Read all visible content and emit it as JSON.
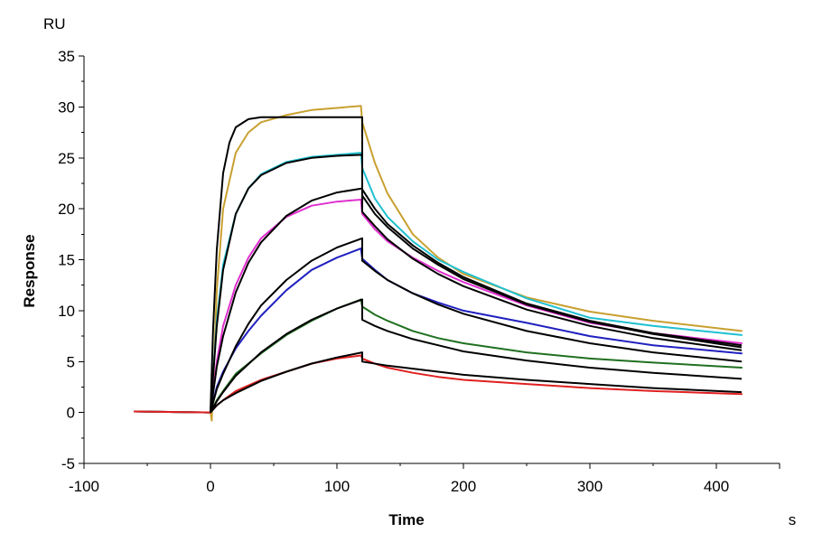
{
  "chart_data": {
    "type": "line",
    "xlabel": "Time",
    "xunit": "s",
    "ylabel": "Response",
    "yunit": "RU",
    "xlim": [
      -100,
      450
    ],
    "ylim": [
      -5,
      35
    ],
    "xticks": [
      -100,
      0,
      100,
      200,
      300,
      400
    ],
    "xtick_labels": [
      "-100",
      "0",
      "100",
      "200",
      "300",
      "400"
    ],
    "yticks": [
      -5,
      0,
      5,
      10,
      15,
      20,
      25,
      30,
      35
    ],
    "ytick_labels": [
      "-5",
      "0",
      "5",
      "10",
      "15",
      "20",
      "25",
      "30",
      "35"
    ],
    "grid": false,
    "series": [
      {
        "color": "#c8a030",
        "values": [
          [
            -60,
            0.1
          ],
          [
            0,
            0
          ],
          [
            1,
            -0.8
          ],
          [
            5,
            12
          ],
          [
            10,
            20
          ],
          [
            20,
            25.5
          ],
          [
            30,
            27.5
          ],
          [
            40,
            28.5
          ],
          [
            60,
            29.2
          ],
          [
            80,
            29.7
          ],
          [
            100,
            29.9
          ],
          [
            119,
            30.1
          ],
          [
            120,
            28.5
          ],
          [
            130,
            24.5
          ],
          [
            140,
            21.5
          ],
          [
            160,
            17.5
          ],
          [
            180,
            15.2
          ],
          [
            200,
            13.6
          ],
          [
            250,
            11.3
          ],
          [
            300,
            9.9
          ],
          [
            350,
            9.0
          ],
          [
            420,
            8.0
          ]
        ]
      },
      {
        "color": "#20c0d0",
        "values": [
          [
            -60,
            0.1
          ],
          [
            0,
            0
          ],
          [
            5,
            9
          ],
          [
            10,
            14.5
          ],
          [
            20,
            19.5
          ],
          [
            30,
            22
          ],
          [
            40,
            23.4
          ],
          [
            60,
            24.6
          ],
          [
            80,
            25.1
          ],
          [
            100,
            25.3
          ],
          [
            119,
            25.5
          ],
          [
            120,
            24
          ],
          [
            130,
            21
          ],
          [
            140,
            19.2
          ],
          [
            160,
            16.8
          ],
          [
            180,
            15
          ],
          [
            200,
            13.8
          ],
          [
            250,
            11.2
          ],
          [
            300,
            9.3
          ],
          [
            350,
            8.5
          ],
          [
            420,
            7.6
          ]
        ]
      },
      {
        "color": "#e030d0",
        "values": [
          [
            -60,
            0.1
          ],
          [
            0,
            0
          ],
          [
            5,
            5
          ],
          [
            10,
            8.5
          ],
          [
            20,
            12.5
          ],
          [
            30,
            15.2
          ],
          [
            40,
            17.1
          ],
          [
            60,
            19.2
          ],
          [
            80,
            20.3
          ],
          [
            100,
            20.7
          ],
          [
            119,
            20.9
          ],
          [
            120,
            19.5
          ],
          [
            130,
            18
          ],
          [
            140,
            16.8
          ],
          [
            160,
            15.2
          ],
          [
            180,
            13.9
          ],
          [
            200,
            12.8
          ],
          [
            250,
            10.5
          ],
          [
            300,
            8.8
          ],
          [
            350,
            7.8
          ],
          [
            420,
            6.8
          ]
        ]
      },
      {
        "color": "#2020c0",
        "values": [
          [
            -60,
            0.1
          ],
          [
            0,
            0
          ],
          [
            5,
            2.5
          ],
          [
            10,
            4
          ],
          [
            20,
            6.3
          ],
          [
            30,
            8
          ],
          [
            40,
            9.5
          ],
          [
            60,
            12
          ],
          [
            80,
            14
          ],
          [
            100,
            15.2
          ],
          [
            119,
            16.1
          ],
          [
            120,
            15.1
          ],
          [
            130,
            14
          ],
          [
            140,
            13
          ],
          [
            160,
            11.7
          ],
          [
            180,
            10.8
          ],
          [
            200,
            10
          ],
          [
            250,
            8.8
          ],
          [
            300,
            7.5
          ],
          [
            350,
            6.6
          ],
          [
            420,
            5.8
          ]
        ]
      },
      {
        "color": "#207020",
        "values": [
          [
            -60,
            0.1
          ],
          [
            0,
            0
          ],
          [
            5,
            1.2
          ],
          [
            10,
            2.1
          ],
          [
            20,
            3.8
          ],
          [
            40,
            5.8
          ],
          [
            60,
            7.6
          ],
          [
            80,
            9.0
          ],
          [
            100,
            10.2
          ],
          [
            119,
            11.1
          ],
          [
            120,
            10.4
          ],
          [
            130,
            9.6
          ],
          [
            140,
            9.0
          ],
          [
            160,
            8.0
          ],
          [
            180,
            7.3
          ],
          [
            200,
            6.8
          ],
          [
            250,
            5.9
          ],
          [
            300,
            5.3
          ],
          [
            350,
            4.9
          ],
          [
            420,
            4.4
          ]
        ]
      },
      {
        "color": "#e02020",
        "values": [
          [
            -60,
            0.1
          ],
          [
            0,
            0
          ],
          [
            5,
            0.7
          ],
          [
            10,
            1.2
          ],
          [
            20,
            2.1
          ],
          [
            40,
            3.2
          ],
          [
            60,
            4
          ],
          [
            80,
            4.8
          ],
          [
            100,
            5.3
          ],
          [
            119,
            5.6
          ],
          [
            120,
            5.3
          ],
          [
            130,
            4.8
          ],
          [
            140,
            4.4
          ],
          [
            160,
            3.9
          ],
          [
            180,
            3.5
          ],
          [
            200,
            3.2
          ],
          [
            250,
            2.8
          ],
          [
            300,
            2.4
          ],
          [
            350,
            2.1
          ],
          [
            420,
            1.8
          ]
        ]
      }
    ],
    "fits": [
      {
        "values": [
          [
            0,
            0
          ],
          [
            2,
            8
          ],
          [
            5,
            16
          ],
          [
            10,
            23.5
          ],
          [
            15,
            26.5
          ],
          [
            20,
            28
          ],
          [
            30,
            28.8
          ],
          [
            40,
            29
          ],
          [
            60,
            29
          ],
          [
            100,
            29
          ],
          [
            120,
            29
          ],
          [
            120,
            21.9
          ],
          [
            130,
            20
          ],
          [
            140,
            18.5
          ],
          [
            160,
            16.4
          ],
          [
            180,
            14.7
          ],
          [
            200,
            13.3
          ],
          [
            250,
            10.7
          ],
          [
            300,
            9
          ],
          [
            350,
            7.8
          ],
          [
            420,
            6.6
          ]
        ]
      },
      {
        "values": [
          [
            0,
            0
          ],
          [
            5,
            8.5
          ],
          [
            10,
            14
          ],
          [
            20,
            19.5
          ],
          [
            30,
            22
          ],
          [
            40,
            23.3
          ],
          [
            60,
            24.5
          ],
          [
            80,
            25
          ],
          [
            100,
            25.2
          ],
          [
            120,
            25.3
          ],
          [
            120,
            21.3
          ],
          [
            130,
            19.5
          ],
          [
            140,
            18.2
          ],
          [
            160,
            16.1
          ],
          [
            180,
            14.5
          ],
          [
            200,
            13.1
          ],
          [
            250,
            10.6
          ],
          [
            300,
            8.9
          ],
          [
            350,
            7.7
          ],
          [
            420,
            6.4
          ]
        ]
      },
      {
        "values": [
          [
            0,
            0
          ],
          [
            5,
            4.5
          ],
          [
            10,
            7.5
          ],
          [
            20,
            11.8
          ],
          [
            30,
            14.7
          ],
          [
            40,
            16.7
          ],
          [
            60,
            19.3
          ],
          [
            80,
            20.8
          ],
          [
            100,
            21.6
          ],
          [
            120,
            22
          ],
          [
            120,
            19.7
          ],
          [
            130,
            18.3
          ],
          [
            140,
            17
          ],
          [
            160,
            15.1
          ],
          [
            180,
            13.6
          ],
          [
            200,
            12.4
          ],
          [
            250,
            10.1
          ],
          [
            300,
            8.5
          ],
          [
            350,
            7.3
          ],
          [
            420,
            6.1
          ]
        ]
      },
      {
        "values": [
          [
            0,
            0
          ],
          [
            5,
            2.3
          ],
          [
            10,
            3.8
          ],
          [
            20,
            6.5
          ],
          [
            30,
            8.7
          ],
          [
            40,
            10.5
          ],
          [
            60,
            13
          ],
          [
            80,
            14.9
          ],
          [
            100,
            16.2
          ],
          [
            120,
            17.1
          ],
          [
            120,
            14.9
          ],
          [
            130,
            13.9
          ],
          [
            140,
            13
          ],
          [
            160,
            11.7
          ],
          [
            180,
            10.6
          ],
          [
            200,
            9.7
          ],
          [
            250,
            8
          ],
          [
            300,
            6.8
          ],
          [
            350,
            5.9
          ],
          [
            420,
            5
          ]
        ]
      },
      {
        "values": [
          [
            0,
            0
          ],
          [
            5,
            1.1
          ],
          [
            10,
            2
          ],
          [
            20,
            3.6
          ],
          [
            40,
            5.9
          ],
          [
            60,
            7.7
          ],
          [
            80,
            9.1
          ],
          [
            100,
            10.2
          ],
          [
            120,
            11.1
          ],
          [
            120,
            9.1
          ],
          [
            130,
            8.5
          ],
          [
            140,
            8
          ],
          [
            160,
            7.2
          ],
          [
            180,
            6.6
          ],
          [
            200,
            6
          ],
          [
            250,
            5.1
          ],
          [
            300,
            4.4
          ],
          [
            350,
            3.9
          ],
          [
            420,
            3.3
          ]
        ]
      },
      {
        "values": [
          [
            0,
            0
          ],
          [
            5,
            0.7
          ],
          [
            10,
            1.2
          ],
          [
            20,
            1.9
          ],
          [
            40,
            3.1
          ],
          [
            60,
            4
          ],
          [
            80,
            4.8
          ],
          [
            100,
            5.4
          ],
          [
            120,
            5.9
          ],
          [
            120,
            5
          ],
          [
            140,
            4.6
          ],
          [
            160,
            4.3
          ],
          [
            180,
            4
          ],
          [
            200,
            3.7
          ],
          [
            250,
            3.2
          ],
          [
            300,
            2.8
          ],
          [
            350,
            2.4
          ],
          [
            420,
            2
          ]
        ]
      }
    ]
  }
}
